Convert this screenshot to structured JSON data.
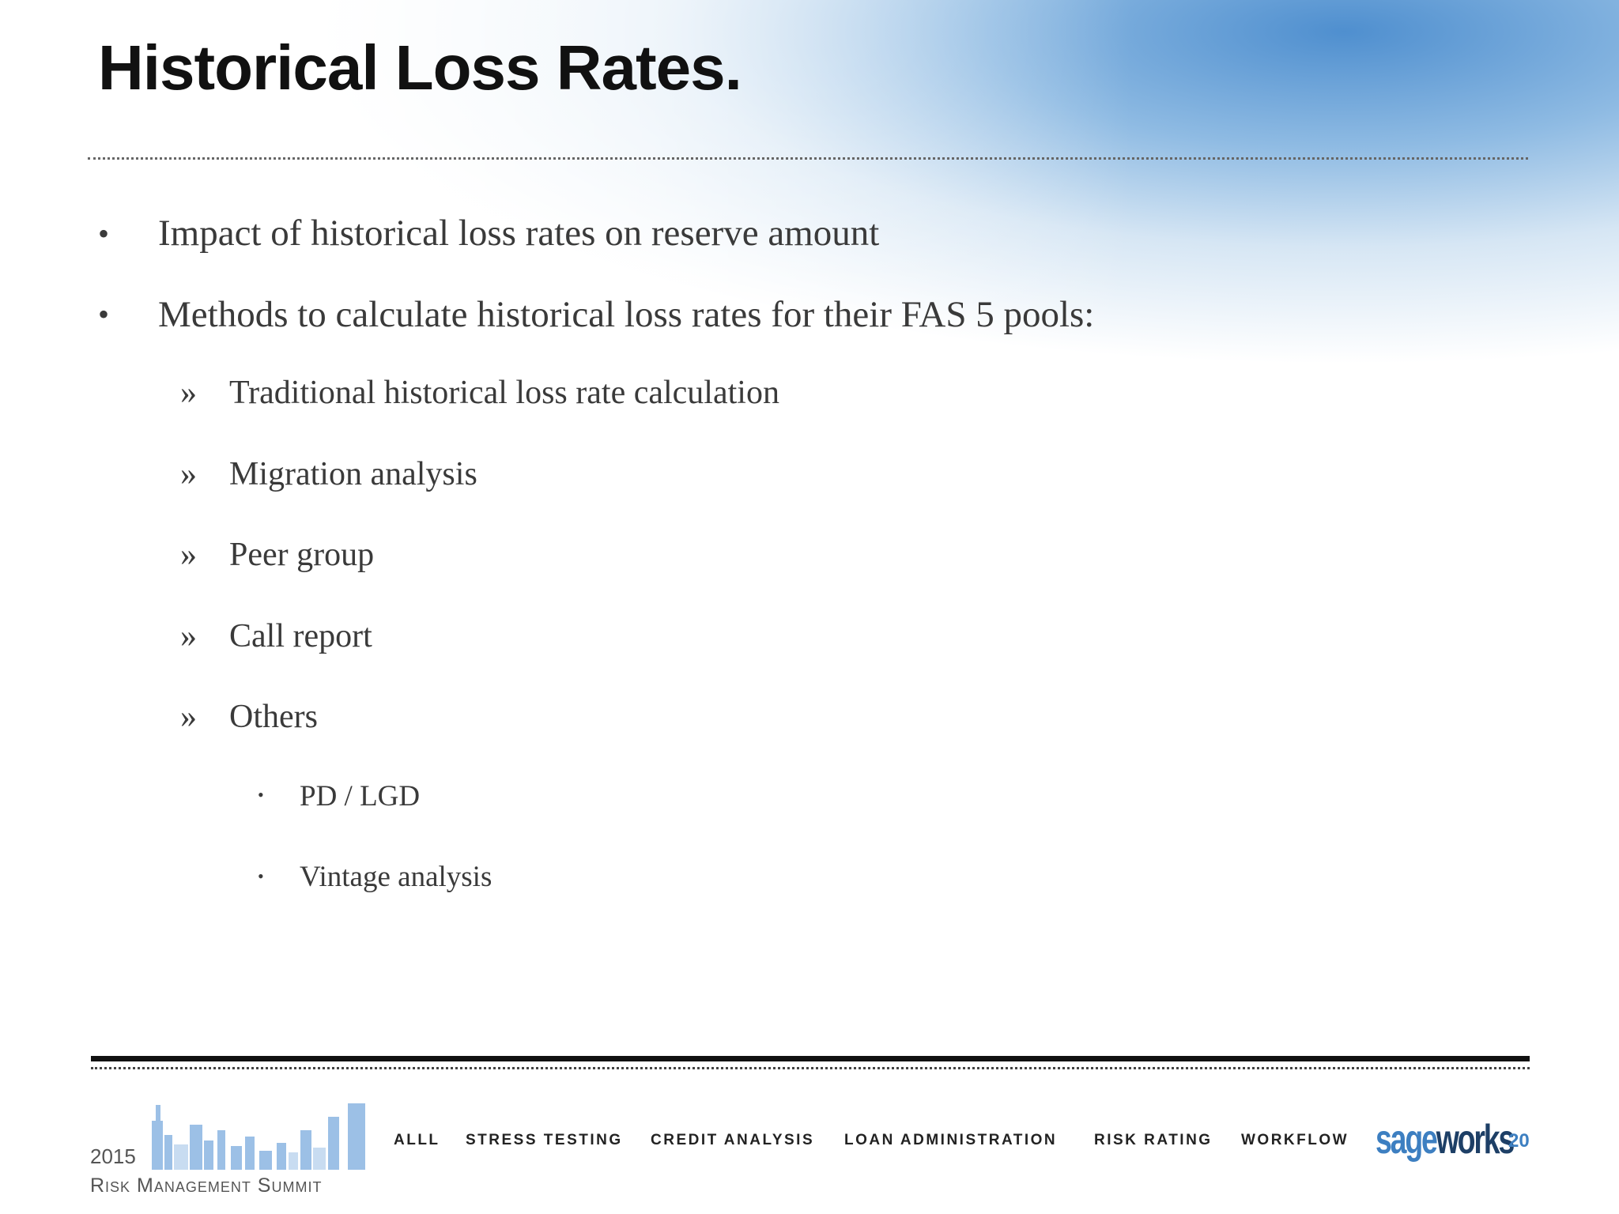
{
  "header": {
    "title": "Historical Loss Rates."
  },
  "body": {
    "bullets": [
      {
        "text": "Impact of historical loss rates on reserve amount"
      },
      {
        "text": "Methods to calculate historical loss rates for their FAS 5 pools:",
        "subitems": [
          {
            "text": "Traditional historical loss rate calculation"
          },
          {
            "text": "Migration analysis"
          },
          {
            "text": "Peer group"
          },
          {
            "text": "Call report"
          },
          {
            "text": "Others",
            "subitems": [
              {
                "text": "PD / LGD"
              },
              {
                "text": "Vintage analysis"
              }
            ]
          }
        ]
      }
    ]
  },
  "footer": {
    "year": "2015",
    "event": "Risk Management Summit",
    "nav": [
      "ALLL",
      "STRESS TESTING",
      "CREDIT ANALYSIS",
      "LOAN ADMINISTRATION",
      "RISK RATING",
      "WORKFLOW"
    ],
    "logo_left": "sage",
    "logo_right": "works",
    "page_number": "20"
  }
}
